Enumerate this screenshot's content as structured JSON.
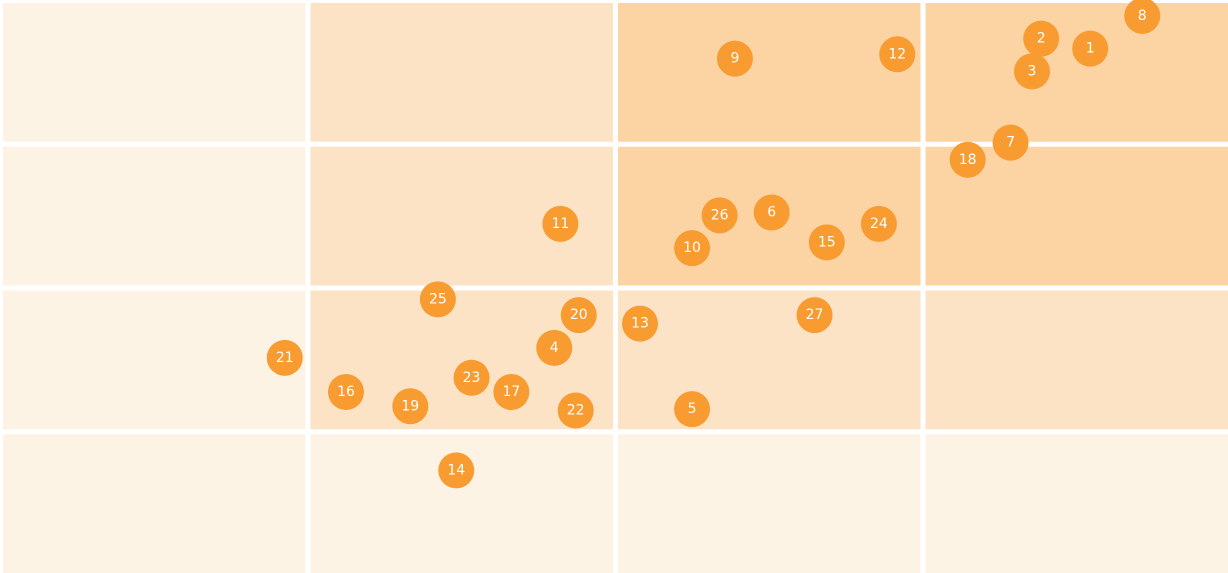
{
  "chart_data": {
    "type": "scatter",
    "title": "",
    "xlabel": "",
    "ylabel": "",
    "grid": {
      "columns": 4,
      "rows": 4,
      "cell_colors": [
        [
          "#fdf3e4",
          "#fde3c6",
          "#fcd3a3",
          "#fcd3a3"
        ],
        [
          "#fdf3e4",
          "#fde3c6",
          "#fcd3a3",
          "#fcd3a3"
        ],
        [
          "#fdf3e4",
          "#fde3c6",
          "#fde3c6",
          "#fde3c6"
        ],
        [
          "#fdf3e4",
          "#fdf3e4",
          "#fdf3e4",
          "#fdf3e4"
        ]
      ]
    },
    "xlim": [
      0,
      4
    ],
    "ylim": [
      0,
      4
    ],
    "point_color": "#f89b30",
    "points": [
      {
        "label": "1",
        "x": 3.55,
        "y": 3.68
      },
      {
        "label": "2",
        "x": 3.39,
        "y": 3.75
      },
      {
        "label": "3",
        "x": 3.36,
        "y": 3.52
      },
      {
        "label": "4",
        "x": 1.8,
        "y": 1.58
      },
      {
        "label": "5",
        "x": 2.25,
        "y": 1.15
      },
      {
        "label": "6",
        "x": 2.51,
        "y": 2.53
      },
      {
        "label": "7",
        "x": 3.29,
        "y": 3.02
      },
      {
        "label": "8",
        "x": 3.72,
        "y": 3.91
      },
      {
        "label": "9",
        "x": 2.39,
        "y": 3.61
      },
      {
        "label": "10",
        "x": 2.25,
        "y": 2.28
      },
      {
        "label": "11",
        "x": 1.82,
        "y": 2.45
      },
      {
        "label": "12",
        "x": 2.92,
        "y": 3.64
      },
      {
        "label": "13",
        "x": 2.08,
        "y": 1.75
      },
      {
        "label": "14",
        "x": 1.48,
        "y": 0.72
      },
      {
        "label": "15",
        "x": 2.69,
        "y": 2.32
      },
      {
        "label": "16",
        "x": 1.12,
        "y": 1.27
      },
      {
        "label": "17",
        "x": 1.66,
        "y": 1.27
      },
      {
        "label": "18",
        "x": 3.15,
        "y": 2.9
      },
      {
        "label": "19",
        "x": 1.33,
        "y": 1.17
      },
      {
        "label": "20",
        "x": 1.88,
        "y": 1.81
      },
      {
        "label": "21",
        "x": 0.92,
        "y": 1.51
      },
      {
        "label": "22",
        "x": 1.87,
        "y": 1.14
      },
      {
        "label": "23",
        "x": 1.53,
        "y": 1.37
      },
      {
        "label": "24",
        "x": 2.86,
        "y": 2.45
      },
      {
        "label": "25",
        "x": 1.42,
        "y": 1.92
      },
      {
        "label": "26",
        "x": 2.34,
        "y": 2.51
      },
      {
        "label": "27",
        "x": 2.65,
        "y": 1.81
      }
    ]
  }
}
